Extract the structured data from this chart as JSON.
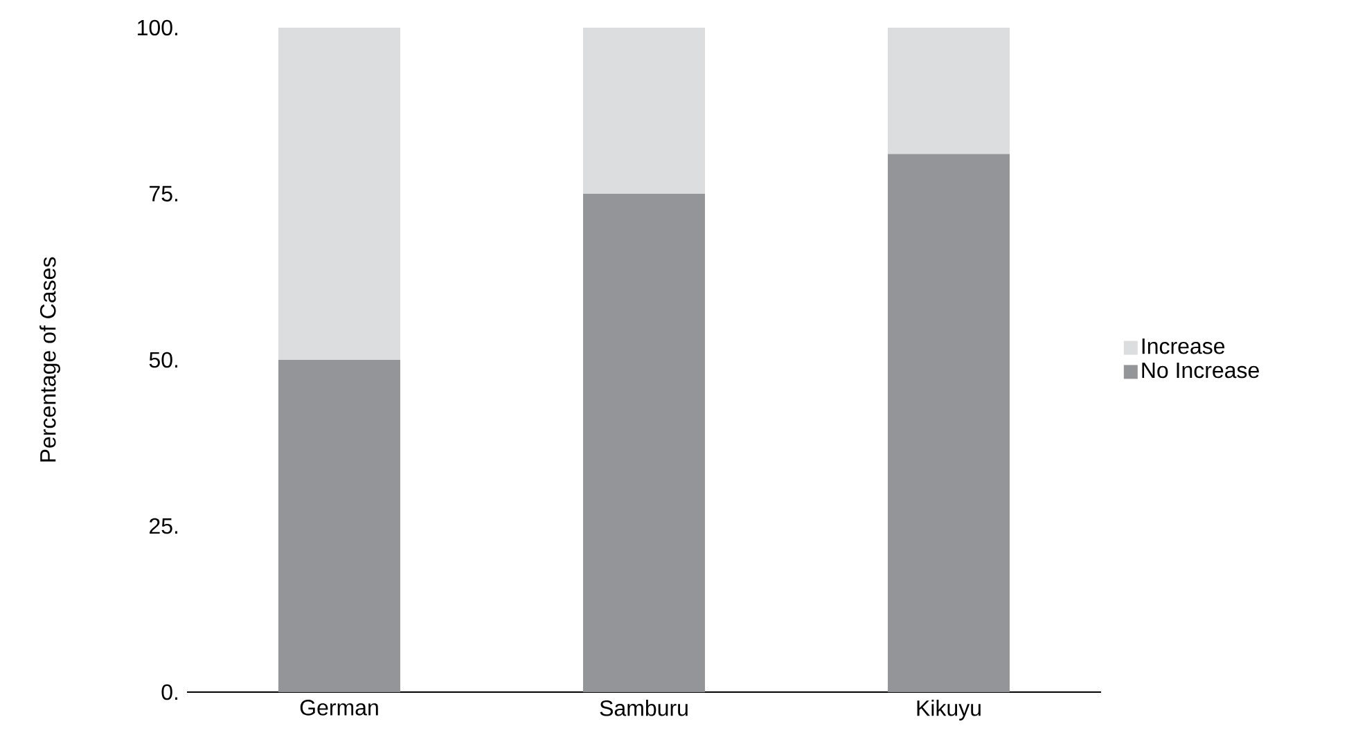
{
  "chart_data": {
    "type": "bar",
    "stacked": true,
    "ylabel": "Percentage of Cases",
    "categories": [
      "German",
      "Samburu",
      "Kikuyu"
    ],
    "series": [
      {
        "name": "No Increase",
        "color": "#939598",
        "values": [
          50,
          75,
          81
        ]
      },
      {
        "name": "Increase",
        "color": "#dcdddf",
        "values": [
          50,
          25,
          19
        ]
      }
    ],
    "ylim": [
      0,
      100
    ],
    "yticks": [
      {
        "value": 0,
        "label": "0."
      },
      {
        "value": 25,
        "label": "25."
      },
      {
        "value": 50,
        "label": "50."
      },
      {
        "value": 75,
        "label": "75."
      },
      {
        "value": 100,
        "label": "100."
      }
    ],
    "grid": false,
    "legend": "right"
  }
}
